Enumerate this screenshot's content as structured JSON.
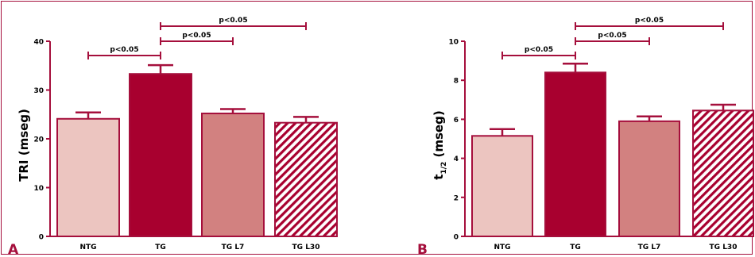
{
  "colors": {
    "frame": "#a50f3c",
    "axis": "#a50f3c",
    "bracket": "#a50f3c",
    "NTG": "#ecc5c0",
    "TG": "#a8002f",
    "TG L7": "#d28180",
    "TG L30_stripe": "#a8002f"
  },
  "chart_data": [
    {
      "panel_label": "A",
      "type": "bar",
      "categories": [
        "NTG",
        "TG",
        "TG L7",
        "TG L30"
      ],
      "values": [
        24.1,
        33.3,
        25.2,
        23.3
      ],
      "errors": [
        1.3,
        1.8,
        0.9,
        1.2
      ],
      "ylabel": "TRI (mseg)",
      "ylabel_sub": "",
      "ylim": [
        0,
        40
      ],
      "yticks": [
        "0",
        "10",
        "20",
        "30",
        "40"
      ],
      "fill_patterns": [
        "solid",
        "solid",
        "solid",
        "hatched"
      ],
      "significance": [
        {
          "from": "NTG",
          "to": "TG",
          "label": "p<0.05"
        },
        {
          "from": "TG",
          "to": "TG L7",
          "label": "p<0.05"
        },
        {
          "from": "TG",
          "to": "TG L30",
          "label": "p<0.05"
        }
      ]
    },
    {
      "panel_label": "B",
      "type": "bar",
      "categories": [
        "NTG",
        "TG",
        "TG L7",
        "TG L30"
      ],
      "values": [
        5.15,
        8.4,
        5.9,
        6.45
      ],
      "errors": [
        0.35,
        0.45,
        0.25,
        0.3
      ],
      "ylabel": "t",
      "ylabel_sub": "1/2",
      "ylabel_unit": " (mseg)",
      "ylim": [
        0,
        10
      ],
      "yticks": [
        "0",
        "2",
        "4",
        "6",
        "8",
        "10"
      ],
      "fill_patterns": [
        "solid",
        "solid",
        "solid",
        "hatched"
      ],
      "significance": [
        {
          "from": "NTG",
          "to": "TG",
          "label": "p<0.05"
        },
        {
          "from": "TG",
          "to": "TG L7",
          "label": "p<0.05"
        },
        {
          "from": "TG",
          "to": "TG L30",
          "label": "p<0.05"
        }
      ]
    }
  ]
}
